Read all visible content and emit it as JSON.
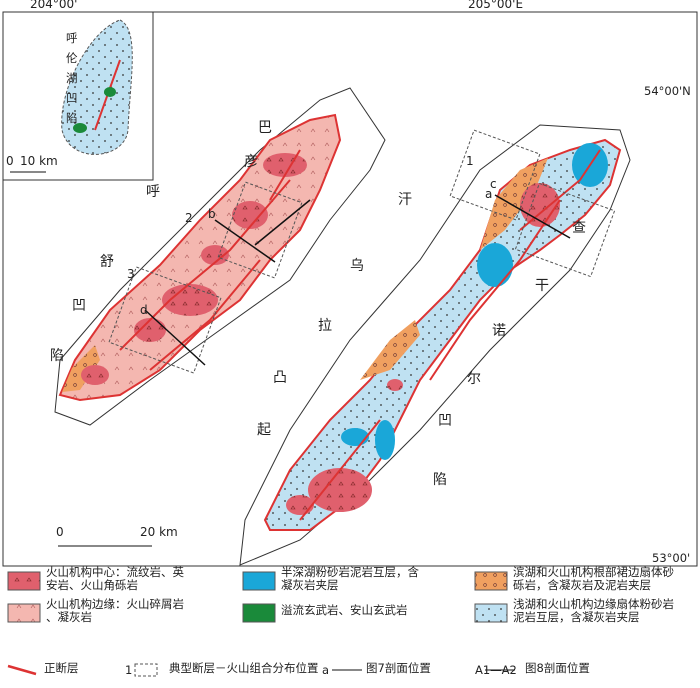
{
  "coordinates": {
    "top_left": "204°00'",
    "top_right": "205°00'E",
    "right_upper": "54°00'N",
    "right_lower": "53°00'"
  },
  "units": {
    "west_depression": "巴彦呼舒凹陷",
    "uplift": "汗乌拉凸起",
    "east_depression": "查干诺尔凹陷"
  },
  "inset": {
    "depression": "呼伦湖凹陷",
    "scale_zero": "0",
    "scale_length": "10 km"
  },
  "scale": {
    "zero": "0",
    "length": "20 km"
  },
  "map_labels": {
    "box_1": "1",
    "box_2": "2",
    "box_3": "3",
    "line_a": "a",
    "line_b": "b",
    "line_c": "c",
    "line_d": "d"
  },
  "legend": {
    "items": [
      {
        "key": "",
        "text": "火山机构中心：流纹岩、英安岩、火山角砾岩"
      },
      {
        "key": "",
        "text": "半深湖粉砂岩泥岩互层，含凝灰岩夹层"
      },
      {
        "key": "",
        "text": "滨湖和火山机构根部裙边扇体砂砾岩，含凝灰岩及泥岩夹层"
      },
      {
        "key": "",
        "text": "火山机构边缘：火山碎屑岩、凝灰岩"
      },
      {
        "key": "",
        "text": "溢流玄武岩、安山玄武岩"
      },
      {
        "key": "",
        "text": "浅湖和火山机构边缘扇体粉砂岩泥岩互层，含凝灰岩夹层"
      },
      {
        "key": "",
        "text": "正断层"
      },
      {
        "key": "1",
        "text": "典型断层－火山组合分布位置"
      },
      {
        "key": "a",
        "text": "图7剖面位置"
      },
      {
        "key": "A1—A2",
        "text": "图8剖面位置"
      }
    ]
  }
}
